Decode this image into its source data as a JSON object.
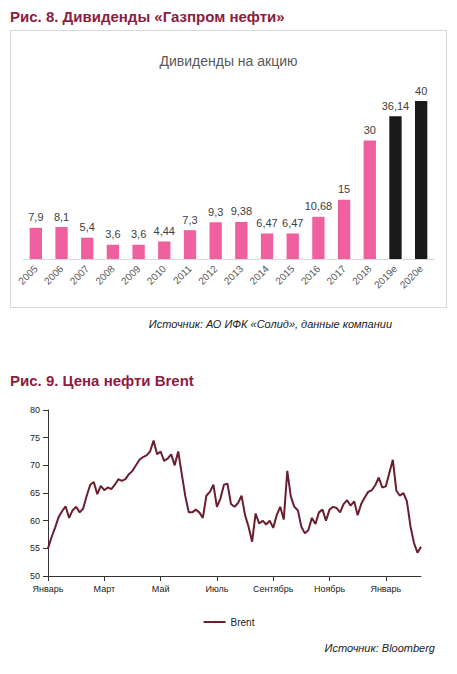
{
  "chart_data": [
    {
      "type": "bar",
      "caption": "Рис. 8. Дивиденды «Газпром нефти»",
      "title": "Дивиденды на акцию",
      "source": "Источник: АО ИФК «Солид», данные компании",
      "categories": [
        "2005",
        "2006",
        "2007",
        "2008",
        "2009",
        "2010",
        "2011",
        "2012",
        "2013",
        "2014",
        "2015",
        "2016",
        "2017",
        "2018",
        "2019e",
        "2020e"
      ],
      "values": [
        7.9,
        8.1,
        5.4,
        3.6,
        3.6,
        4.44,
        7.3,
        9.3,
        9.38,
        6.47,
        6.47,
        10.68,
        15,
        30,
        36.14,
        40
      ],
      "value_labels": [
        "7,9",
        "8,1",
        "5,4",
        "3,6",
        "3,6",
        "4,44",
        "7,3",
        "9,3",
        "9,38",
        "6,47",
        "6,47",
        "10,68",
        "15",
        "30",
        "36,14",
        "40"
      ],
      "colors": [
        "#f0609f",
        "#f0609f",
        "#f0609f",
        "#f0609f",
        "#f0609f",
        "#f0609f",
        "#f0609f",
        "#f0609f",
        "#f0609f",
        "#f0609f",
        "#f0609f",
        "#f0609f",
        "#f0609f",
        "#f0609f",
        "#1a1a1a",
        "#1a1a1a"
      ],
      "ylim": [
        0,
        40
      ],
      "data_labels": true,
      "tick_labels": "x",
      "grid": false
    },
    {
      "type": "line",
      "caption": "Рис. 9. Цена нефти Brent",
      "source": "Источник: Bloomberg",
      "categories": [
        "Январь",
        null,
        null,
        null,
        null,
        null,
        null,
        null,
        null,
        null,
        null,
        null,
        null,
        null,
        null,
        null,
        "Март",
        null,
        null,
        null,
        null,
        null,
        null,
        null,
        null,
        null,
        null,
        null,
        null,
        null,
        null,
        null,
        "Май",
        null,
        null,
        null,
        null,
        null,
        null,
        null,
        null,
        null,
        null,
        null,
        null,
        null,
        null,
        null,
        "Июль",
        null,
        null,
        null,
        null,
        null,
        null,
        null,
        null,
        null,
        null,
        null,
        null,
        null,
        null,
        null,
        "Сентябрь",
        null,
        null,
        null,
        null,
        null,
        null,
        null,
        null,
        null,
        null,
        null,
        null,
        null,
        null,
        null,
        "Ноябрь",
        null,
        null,
        null,
        null,
        null,
        null,
        null,
        null,
        null,
        null,
        null,
        null,
        null,
        null,
        null,
        "Январь",
        null,
        null,
        null,
        null,
        null,
        null,
        null,
        null,
        null,
        null
      ],
      "series": [
        {
          "name": "Brent",
          "color": "#6b1f2e",
          "values": [
            55.0,
            57.0,
            58.7,
            60.6,
            61.7,
            62.6,
            60.5,
            61.9,
            62.5,
            61.5,
            62.2,
            64.5,
            66.5,
            67.0,
            64.8,
            66.3,
            65.5,
            66.0,
            65.7,
            66.5,
            67.5,
            67.2,
            67.5,
            68.4,
            69.0,
            70.0,
            71.0,
            71.5,
            71.8,
            72.5,
            74.5,
            72.0,
            72.5,
            70.8,
            71.2,
            72.0,
            70.0,
            72.5,
            68.5,
            64.5,
            61.5,
            61.5,
            62.0,
            61.5,
            60.5,
            64.5,
            65.2,
            66.5,
            62.5,
            64.0,
            66.5,
            66.7,
            63.0,
            62.5,
            63.2,
            64.5,
            61.0,
            58.9,
            56.2,
            61.3,
            59.5,
            60.0,
            59.3,
            60.0,
            58.7,
            61.0,
            62.5,
            60.2,
            69.0,
            64.4,
            62.5,
            61.9,
            58.9,
            57.7,
            58.3,
            60.5,
            59.4,
            61.5,
            62.0,
            60.0,
            62.0,
            62.5,
            62.3,
            61.5,
            63.0,
            63.7,
            62.7,
            63.5,
            61.0,
            63.0,
            64.2,
            65.2,
            65.5,
            66.4,
            67.8,
            66.0,
            66.2,
            68.6,
            71.0,
            65.4,
            64.5,
            65.0,
            63.5,
            59.0,
            56.0,
            54.2,
            55.3
          ]
        }
      ],
      "ylim": [
        50,
        80
      ],
      "yticks": [
        50,
        55,
        60,
        65,
        70,
        75,
        80
      ],
      "legend": "bottom",
      "grid": false
    }
  ]
}
